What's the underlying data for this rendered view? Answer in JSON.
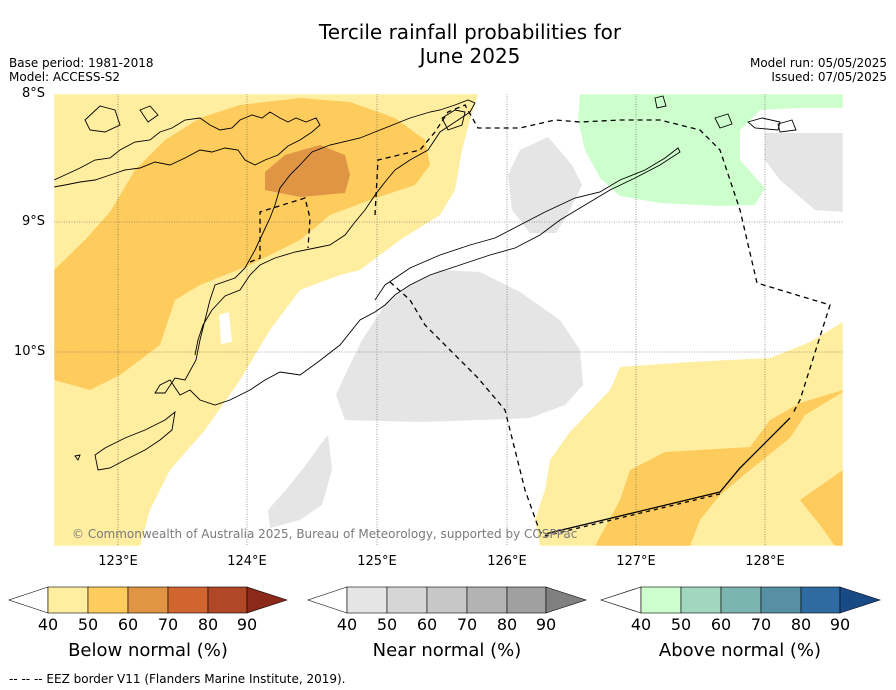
{
  "title": {
    "line1": "Tercile rainfall probabilities for",
    "line2": "June 2025"
  },
  "meta": {
    "base_period": "Base period: 1981-2018",
    "model": "Model: ACCESS-S2",
    "model_run": "Model run: 05/05/2025",
    "issued": "Issued: 07/05/2025"
  },
  "map": {
    "lat_labels": [
      "8°S",
      "9°S",
      "10°S"
    ],
    "lon_labels": [
      "123°E",
      "124°E",
      "125°E",
      "126°E",
      "127°E",
      "128°E"
    ],
    "copyright": "© Commonwealth of Australia 2025, Bureau of Meteorology, supported by COSPPac",
    "colors": {
      "below_50": "#ffeda0",
      "below_60": "#fecc5c",
      "below_70": "#e09545",
      "near_50": "#e5e5e5",
      "above_50": "#ccffcc",
      "coast": "#000000"
    }
  },
  "colorbars": [
    {
      "title": "Below normal (%)",
      "ticks": [
        "40",
        "50",
        "60",
        "70",
        "80",
        "90"
      ],
      "colors": [
        "#ffeda0",
        "#fecc5c",
        "#e09545",
        "#d0652f",
        "#b04828",
        "#8b2a18"
      ]
    },
    {
      "title": "Near normal (%)",
      "ticks": [
        "40",
        "50",
        "60",
        "70",
        "80",
        "90"
      ],
      "colors": [
        "#e5e5e5",
        "#d6d6d6",
        "#c7c7c7",
        "#b3b3b3",
        "#a0a0a0",
        "#808080"
      ]
    },
    {
      "title": "Above normal (%)",
      "ticks": [
        "40",
        "50",
        "60",
        "70",
        "80",
        "90"
      ],
      "colors": [
        "#ccffcc",
        "#a1d6bf",
        "#7ab5b0",
        "#5790a4",
        "#2f6ba0",
        "#184a85"
      ]
    }
  ],
  "footer": {
    "eez_note": "--  --  -- EEZ border V11 (Flanders Marine Institute, 2019)."
  }
}
